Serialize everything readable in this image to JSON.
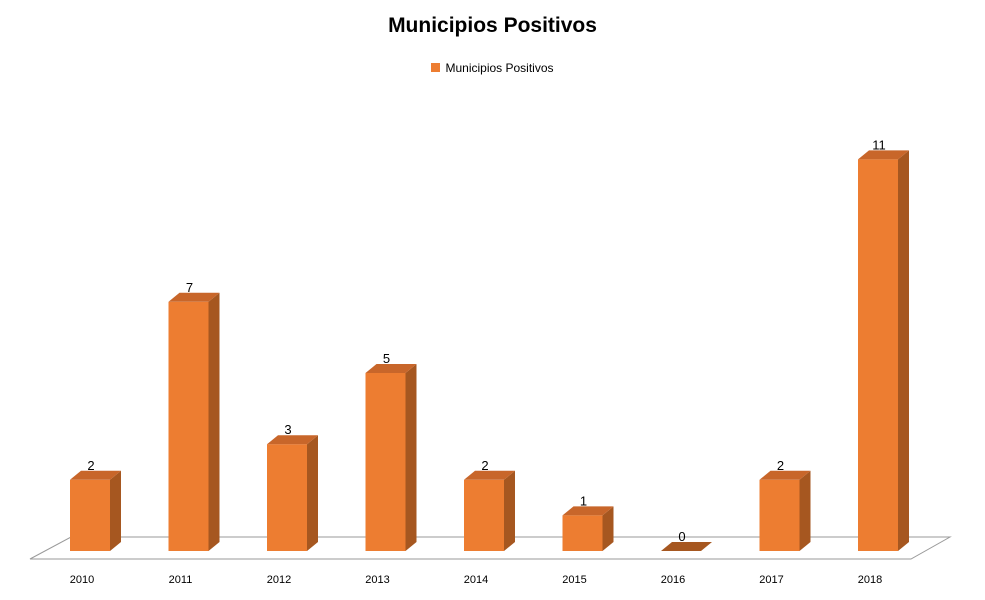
{
  "chart_data": {
    "type": "bar",
    "title": "Municipios Positivos",
    "categories": [
      "2010",
      "2011",
      "2012",
      "2013",
      "2014",
      "2015",
      "2016",
      "2017",
      "2018"
    ],
    "series": [
      {
        "name": "Municipios Positivos",
        "values": [
          2,
          7,
          3,
          5,
          2,
          1,
          0,
          2,
          11
        ]
      }
    ],
    "data_labels": [
      "2",
      "7",
      "3",
      "5",
      "2",
      "1",
      "0",
      "2",
      "11"
    ],
    "xlabel": "",
    "ylabel": "",
    "ylim": [
      0,
      12
    ],
    "grid": false,
    "legend_position": "top",
    "style": "3d-column"
  },
  "colors": {
    "bar_front": "#ED7D31",
    "bar_side": "#A65720",
    "bar_top": "#C8662A",
    "floor_stroke": "#9A9A9A"
  }
}
